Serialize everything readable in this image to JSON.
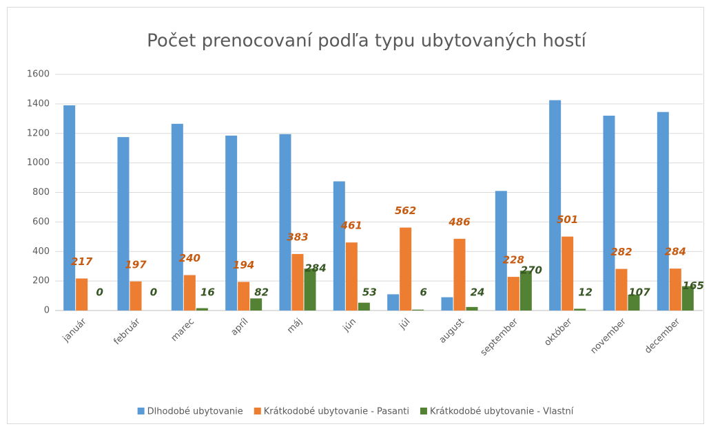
{
  "chart_data": {
    "type": "bar",
    "title": "Počet prenocovaní podľa typu ubytovaných hostí",
    "categories": [
      "január",
      "február",
      "marec",
      "apríl",
      "máj",
      "jún",
      "júl",
      "august",
      "september",
      "október",
      "november",
      "december"
    ],
    "series": [
      {
        "name": "Dlhodobé ubytovanie",
        "color": "#5b9bd5",
        "values": [
          1390,
          1175,
          1265,
          1185,
          1195,
          875,
          110,
          90,
          810,
          1425,
          1320,
          1345
        ]
      },
      {
        "name": "Krátkodobé ubytovanie - Pasanti",
        "color": "#ed7d31",
        "label_color": "#c55a11",
        "values": [
          217,
          197,
          240,
          194,
          383,
          461,
          562,
          486,
          228,
          501,
          282,
          284
        ]
      },
      {
        "name": "Krátkodobé ubytovanie - Vlastní",
        "color": "#548235",
        "label_color": "#375623",
        "values": [
          0,
          0,
          16,
          82,
          284,
          53,
          6,
          24,
          270,
          12,
          107,
          165
        ]
      }
    ],
    "ylim": [
      0,
      1600
    ],
    "yticks": [
      0,
      200,
      400,
      600,
      800,
      1000,
      1200,
      1400,
      1600
    ],
    "grid": true,
    "legend": "bottom"
  }
}
